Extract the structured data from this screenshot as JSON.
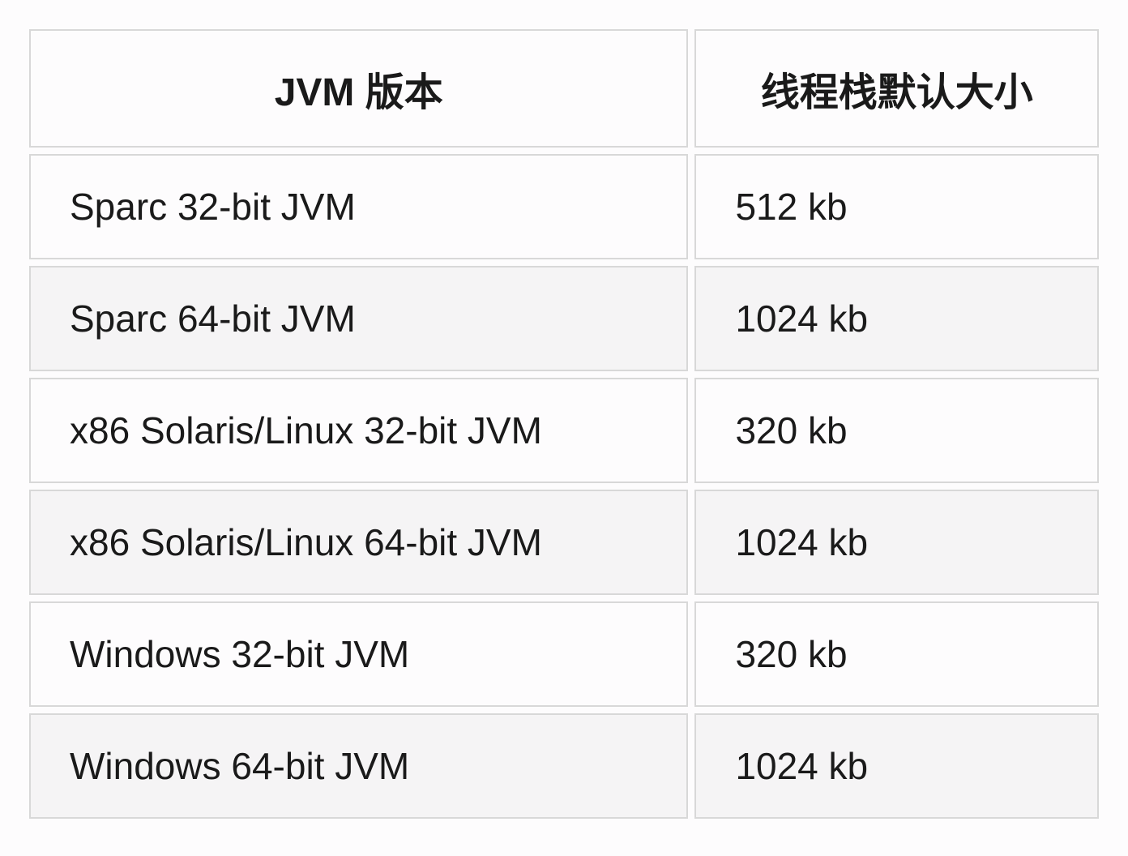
{
  "table": {
    "type": "table",
    "columns": [
      {
        "label": "JVM 版本",
        "width": "62%",
        "align_header": "center",
        "align_cell": "left"
      },
      {
        "label": "线程栈默认大小",
        "width": "38%",
        "align_header": "center",
        "align_cell": "left"
      }
    ],
    "rows": [
      [
        "Sparc 32-bit JVM",
        "512 kb"
      ],
      [
        "Sparc 64-bit JVM",
        "1024 kb"
      ],
      [
        "x86 Solaris/Linux 32-bit JVM",
        "320 kb"
      ],
      [
        "x86 Solaris/Linux 64-bit JVM",
        "1024 kb"
      ],
      [
        "Windows 32-bit JVM",
        "320 kb"
      ],
      [
        "Windows 64-bit JVM",
        "1024 kb"
      ]
    ],
    "styling": {
      "background_color": "#fdfcfd",
      "odd_row_bg": "#fdfcfd",
      "even_row_bg": "#f5f4f5",
      "border_color": "#d8d8d8",
      "border_width": 2,
      "cell_spacing": 8,
      "header_fontsize": 48,
      "cell_fontsize": 46,
      "header_fontweight": 700,
      "cell_fontweight": 400,
      "text_color": "#1a1a1a",
      "cell_padding_v": 36,
      "cell_padding_h": 48
    }
  }
}
